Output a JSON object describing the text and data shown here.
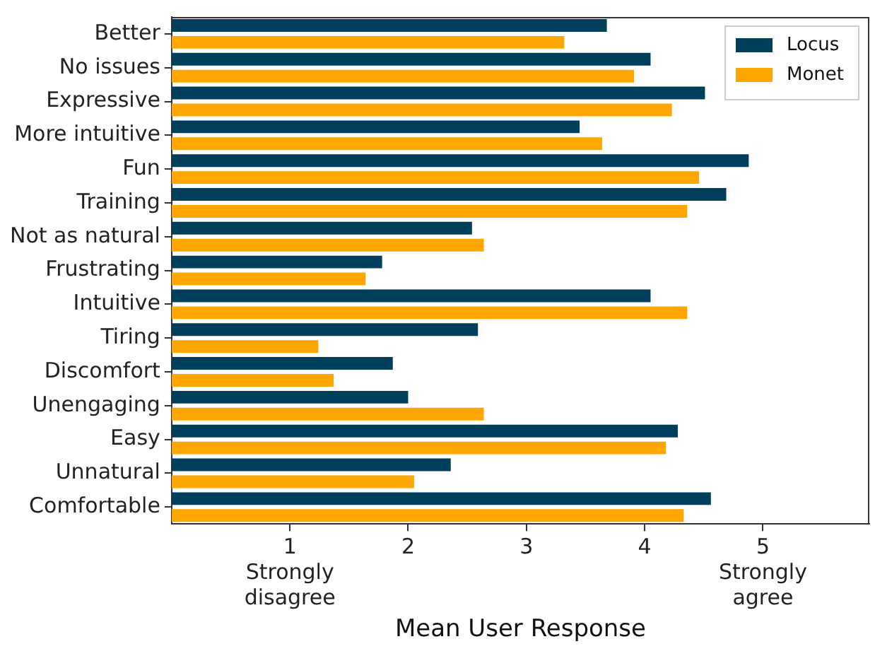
{
  "chart_data": {
    "type": "bar",
    "orientation": "horizontal",
    "xlabel": "Mean User Response",
    "categories": [
      "Better",
      "No issues",
      "Expressive",
      "More intuitive",
      "Fun",
      "Training",
      "Not as natural",
      "Frustrating",
      "Intuitive",
      "Tiring",
      "Discomfort",
      "Unengaging",
      "Easy",
      "Unnatural",
      "Comfortable"
    ],
    "series": [
      {
        "name": "Locus",
        "color": "#003f5c",
        "values": [
          3.68,
          4.05,
          4.51,
          3.45,
          4.88,
          4.69,
          2.54,
          1.78,
          4.05,
          2.59,
          1.87,
          2.0,
          4.28,
          2.36,
          4.56
        ]
      },
      {
        "name": "Monet",
        "color": "#ffa600",
        "values": [
          3.32,
          3.91,
          4.23,
          3.64,
          4.46,
          4.36,
          2.64,
          1.64,
          4.36,
          1.24,
          1.37,
          2.64,
          4.18,
          2.05,
          4.33
        ]
      }
    ],
    "xlim": [
      0,
      5.9
    ],
    "xticks": [
      {
        "value": 1,
        "label": "1\nStrongly\ndisagree"
      },
      2,
      3,
      4,
      {
        "value": 5,
        "label": "5\nStrongly\nagree"
      }
    ],
    "grid": false,
    "legend": "top right"
  }
}
